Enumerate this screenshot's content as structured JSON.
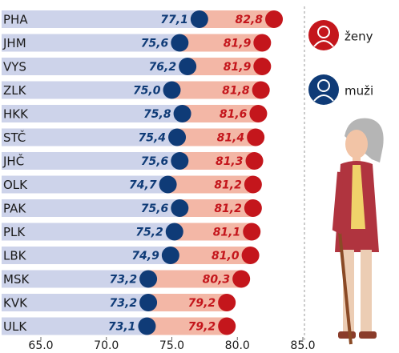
{
  "chart_data": {
    "type": "dumbbell",
    "categories": [
      "PHA",
      "JHM",
      "VYS",
      "ZLK",
      "HKK",
      "STČ",
      "JHČ",
      "OLK",
      "PAK",
      "PLK",
      "LBK",
      "MSK",
      "KVK",
      "ULK"
    ],
    "series": [
      {
        "name": "muži",
        "color": "#0f3b77",
        "values": [
          77.1,
          75.6,
          76.2,
          75.0,
          75.8,
          75.4,
          75.6,
          74.7,
          75.6,
          75.2,
          74.9,
          73.2,
          73.2,
          73.1
        ],
        "value_labels": [
          "77,1",
          "75,6",
          "76,2",
          "75,0",
          "75,8",
          "75,4",
          "75,6",
          "74,7",
          "75,6",
          "75,2",
          "74,9",
          "73,2",
          "73,2",
          "73,1"
        ]
      },
      {
        "name": "ženy",
        "color": "#c4161c",
        "values": [
          82.8,
          81.9,
          81.9,
          81.8,
          81.6,
          81.4,
          81.3,
          81.2,
          81.2,
          81.1,
          81.0,
          80.3,
          79.2,
          79.2
        ],
        "value_labels": [
          "82,8",
          "81,9",
          "81,9",
          "81,8",
          "81,6",
          "81,4",
          "81,3",
          "81,2",
          "81,2",
          "81,1",
          "81,0",
          "80,3",
          "79,2",
          "79,2"
        ]
      }
    ],
    "xlim": [
      65,
      85
    ],
    "xticks": [
      {
        "value": 65,
        "label": "65.0"
      },
      {
        "value": 70,
        "label": "70.0"
      },
      {
        "value": 75,
        "label": "75.0"
      },
      {
        "value": 80,
        "label": "80.0"
      },
      {
        "value": 85,
        "label": "85.0"
      }
    ]
  }
}
